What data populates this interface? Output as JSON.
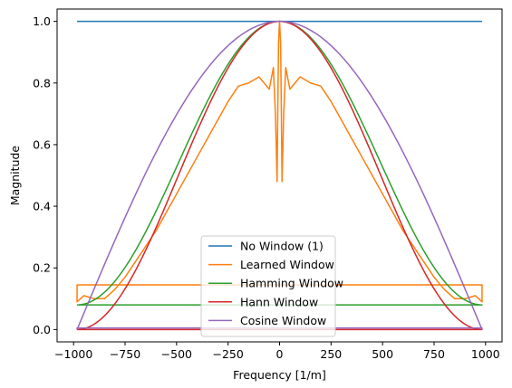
{
  "chart_data": {
    "type": "line",
    "title": "",
    "xlabel": "Frequency [1/m]",
    "ylabel": "Magnitude",
    "xlim": [
      -1080,
      1080
    ],
    "ylim": [
      -0.04,
      1.04
    ],
    "xticks": [
      -1000,
      -750,
      -500,
      -250,
      0,
      250,
      500,
      750,
      1000
    ],
    "xtick_labels": [
      "−1000",
      "−750",
      "−500",
      "−250",
      "0",
      "250",
      "500",
      "750",
      "1000"
    ],
    "yticks": [
      0.0,
      0.2,
      0.4,
      0.6,
      0.8,
      1.0
    ],
    "ytick_labels": [
      "0.0",
      "0.2",
      "0.4",
      "0.6",
      "0.8",
      "1.0"
    ],
    "grid": false,
    "legend_position": "bottom-center",
    "series": [
      {
        "name": "No Window (1)",
        "color": "#1f77b4",
        "x": [
          -983,
          983
        ],
        "y": [
          1.0,
          1.0
        ]
      },
      {
        "name": "Learned Window",
        "color": "#ff7f0e",
        "x": [
          -983,
          -983,
          -950,
          -900,
          -850,
          -800,
          -750,
          -700,
          -650,
          -600,
          -550,
          -500,
          -450,
          -400,
          -350,
          -300,
          -250,
          -200,
          -150,
          -100,
          -75,
          -50,
          -30,
          -20,
          -12,
          -8,
          -5,
          -3,
          0,
          3,
          5,
          8,
          12,
          20,
          30,
          50,
          75,
          100,
          150,
          200,
          250,
          300,
          350,
          400,
          450,
          500,
          550,
          600,
          650,
          700,
          750,
          800,
          850,
          900,
          950,
          983,
          983,
          -983,
          -983
        ],
        "y": [
          0.145,
          0.09,
          0.11,
          0.1,
          0.1,
          0.13,
          0.17,
          0.22,
          0.27,
          0.32,
          0.38,
          0.44,
          0.5,
          0.56,
          0.62,
          0.68,
          0.74,
          0.79,
          0.8,
          0.82,
          0.8,
          0.78,
          0.85,
          0.7,
          0.48,
          0.75,
          0.93,
          0.96,
          1.0,
          0.96,
          0.93,
          0.75,
          0.48,
          0.7,
          0.85,
          0.78,
          0.8,
          0.82,
          0.8,
          0.79,
          0.74,
          0.68,
          0.62,
          0.56,
          0.5,
          0.44,
          0.38,
          0.32,
          0.27,
          0.22,
          0.17,
          0.13,
          0.1,
          0.1,
          0.11,
          0.09,
          0.145,
          0.145,
          0.09
        ]
      },
      {
        "name": "Hamming Window",
        "color": "#2ca02c",
        "function": "hamming",
        "x_range": [
          -983,
          983
        ],
        "closed_baseline": 0.08
      },
      {
        "name": "Hann Window",
        "color": "#d62728",
        "function": "hann",
        "x_range": [
          -983,
          983
        ],
        "closed_baseline": 0.0
      },
      {
        "name": "Cosine Window",
        "color": "#9467bd",
        "function": "cosine",
        "x_range": [
          -983,
          983
        ],
        "closed_baseline": 0.005
      }
    ]
  }
}
